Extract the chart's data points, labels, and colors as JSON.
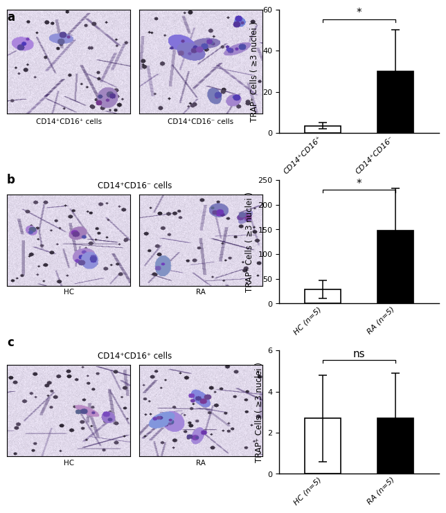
{
  "panel_a": {
    "bars": [
      {
        "label": "CD14⁺CD16⁺",
        "value": 3.5,
        "error": 1.5,
        "color": "white",
        "edgecolor": "black"
      },
      {
        "label": "CD14⁺CD16⁻",
        "value": 30,
        "error": 20,
        "color": "black",
        "edgecolor": "black"
      }
    ],
    "ylim": [
      0,
      60
    ],
    "yticks": [
      0,
      20,
      40,
      60
    ],
    "ylabel": "TRAP⁺ Cells ( ≥3 nuclei )",
    "significance": "*",
    "img_labels": [
      "CD14⁺CD16⁺ cells",
      "CD14⁺CD16⁻ cells"
    ],
    "title": ""
  },
  "panel_b": {
    "bars": [
      {
        "label": "HC (n=5)",
        "value": 28,
        "error": 18,
        "color": "white",
        "edgecolor": "black"
      },
      {
        "label": "RA (n=5)",
        "value": 148,
        "error": 85,
        "color": "black",
        "edgecolor": "black"
      }
    ],
    "ylim": [
      0,
      250
    ],
    "yticks": [
      0,
      50,
      100,
      150,
      200,
      250
    ],
    "ylabel": "TRAP⁺ Cells ( ≥3 nuclei )",
    "significance": "*",
    "img_labels": [
      "HC",
      "RA"
    ],
    "title": "CD14⁺CD16⁻ cells"
  },
  "panel_c": {
    "bars": [
      {
        "label": "HC (n=5)",
        "value": 2.7,
        "error": 2.1,
        "color": "white",
        "edgecolor": "black"
      },
      {
        "label": "RA (n=5)",
        "value": 2.7,
        "error": 2.2,
        "color": "black",
        "edgecolor": "black"
      }
    ],
    "ylim": [
      0,
      6
    ],
    "yticks": [
      0,
      2,
      4,
      6
    ],
    "ylabel": "TRAP⁺ Cells ( ≥3 nuclei )",
    "significance": "ns",
    "img_labels": [
      "HC",
      "RA"
    ],
    "title": "CD14⁺CD16⁺ cells"
  },
  "panel_labels": [
    "a",
    "b",
    "c"
  ],
  "bar_width": 0.5,
  "capsize": 4,
  "fontsize_ylabel": 8.5,
  "fontsize_ticks": 8,
  "fontsize_xlabels": 8,
  "fontsize_sig": 11,
  "fontsize_panel": 12,
  "bg_color": "#e8e4f0",
  "cell_color_light": [
    0.75,
    0.7,
    0.85
  ],
  "cell_color_dark": [
    0.45,
    0.35,
    0.6
  ]
}
